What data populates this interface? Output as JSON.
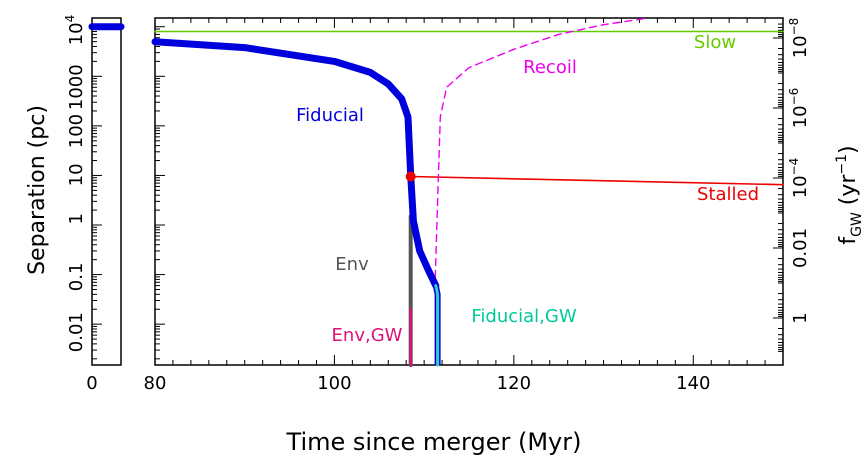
{
  "chart_data": {
    "type": "line",
    "xlabel": "Time since merger (Myr)",
    "ylabel": "Separation (pc)",
    "y2label": "f_GW (yr^-1)",
    "x_axis_break": true,
    "x_ticks_left_panel": [
      "0"
    ],
    "x_ticks_main": [
      "80",
      "100",
      "120",
      "140"
    ],
    "xlim_left_panel": [
      0,
      5
    ],
    "xlim_main": [
      80,
      150
    ],
    "ylim": [
      0.0015,
      15000
    ],
    "y_scale": "log",
    "y_tick_labels": [
      "0.01",
      "0.1",
      "1",
      "10",
      "100",
      "1000",
      "10^4"
    ],
    "y2_tick_labels": [
      "1",
      "0.01",
      "10^-4",
      "10^-6",
      "10^-8"
    ],
    "series": [
      {
        "name": "Fiducial",
        "color": "#0000dd",
        "style": "thick-solid",
        "points": [
          [
            80,
            5000
          ],
          [
            90,
            3800
          ],
          [
            100,
            2000
          ],
          [
            104,
            1200
          ],
          [
            106,
            700
          ],
          [
            107.5,
            350
          ],
          [
            108.2,
            150
          ],
          [
            108.5,
            10
          ],
          [
            108.8,
            1.2
          ],
          [
            109.5,
            0.3
          ],
          [
            110.5,
            0.12
          ],
          [
            111.3,
            0.06
          ]
        ]
      },
      {
        "name": "Fiducial",
        "color": "#0000dd",
        "style": "thick-solid",
        "points": [
          [
            0,
            10000
          ],
          [
            5,
            10000
          ]
        ]
      },
      {
        "name": "Fiducial,GW",
        "color": "#33cccc",
        "style": "solid",
        "points": [
          [
            111.3,
            0.06
          ],
          [
            111.5,
            0.04
          ],
          [
            111.5,
            0.0015
          ]
        ]
      },
      {
        "name": "Env",
        "color": "#555555",
        "style": "solid",
        "points": [
          [
            108.5,
            1.5
          ],
          [
            108.5,
            0.0015
          ]
        ]
      },
      {
        "name": "Env,GW",
        "color": "#dd1177",
        "style": "solid",
        "points": [
          [
            108.5,
            0.02
          ],
          [
            108.5,
            0.0015
          ]
        ]
      },
      {
        "name": "Stalled",
        "color": "#ee0000",
        "style": "solid",
        "points": [
          [
            108.5,
            9.5
          ],
          [
            150,
            6.5
          ]
        ]
      },
      {
        "name": "Slow",
        "color": "#66cc00",
        "style": "solid",
        "points": [
          [
            80,
            8000
          ],
          [
            150,
            8000
          ]
        ]
      },
      {
        "name": "Recoil",
        "color": "#ee00ee",
        "style": "dashed",
        "points": [
          [
            111.2,
            0.05
          ],
          [
            111.5,
            3
          ],
          [
            111.8,
            150
          ],
          [
            112.5,
            600
          ],
          [
            115,
            1500
          ],
          [
            120,
            3500
          ],
          [
            125,
            7000
          ],
          [
            130,
            11000
          ],
          [
            135,
            15000
          ]
        ]
      }
    ],
    "marker": {
      "name": "Stalled",
      "color": "#ee0000",
      "x": 108.5,
      "y": 9.5
    },
    "annotations": [
      "Fiducial",
      "Recoil",
      "Slow",
      "Stalled",
      "Env",
      "Env,GW",
      "Fiducial,GW"
    ],
    "grid": false
  }
}
